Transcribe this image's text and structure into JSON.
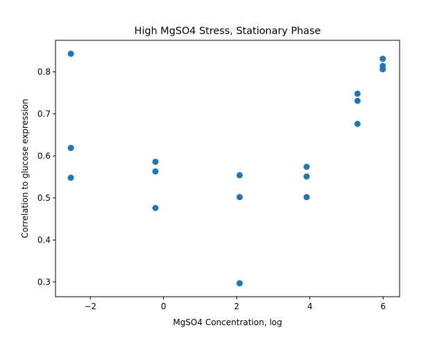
{
  "chart_data": {
    "type": "scatter",
    "title": "High MgSO4 Stress, Stationary Phase",
    "xlabel": "MgSO4 Concentration, log",
    "ylabel": "Correlation to glucose expression",
    "xlim": [
      -2.95,
      6.45
    ],
    "ylim": [
      0.265,
      0.875
    ],
    "xticks": [
      -2,
      0,
      2,
      4,
      6
    ],
    "xtick_labels": [
      "−2",
      "0",
      "2",
      "4",
      "6"
    ],
    "yticks": [
      0.3,
      0.4,
      0.5,
      0.6,
      0.7,
      0.8
    ],
    "ytick_labels": [
      "0.3",
      "0.4",
      "0.5",
      "0.6",
      "0.7",
      "0.8"
    ],
    "grid": false,
    "legend": null,
    "marker_color": "#1f77b4",
    "points": [
      {
        "x": -2.53,
        "y": 0.843
      },
      {
        "x": -2.53,
        "y": 0.619
      },
      {
        "x": -2.53,
        "y": 0.548
      },
      {
        "x": -0.22,
        "y": 0.586
      },
      {
        "x": -0.22,
        "y": 0.563
      },
      {
        "x": -0.22,
        "y": 0.476
      },
      {
        "x": 2.08,
        "y": 0.554
      },
      {
        "x": 2.08,
        "y": 0.502
      },
      {
        "x": 2.08,
        "y": 0.297
      },
      {
        "x": 3.91,
        "y": 0.574
      },
      {
        "x": 3.91,
        "y": 0.551
      },
      {
        "x": 3.91,
        "y": 0.502
      },
      {
        "x": 5.3,
        "y": 0.748
      },
      {
        "x": 5.3,
        "y": 0.731
      },
      {
        "x": 5.3,
        "y": 0.676
      },
      {
        "x": 5.99,
        "y": 0.831
      },
      {
        "x": 5.99,
        "y": 0.814
      },
      {
        "x": 5.99,
        "y": 0.806
      }
    ]
  }
}
